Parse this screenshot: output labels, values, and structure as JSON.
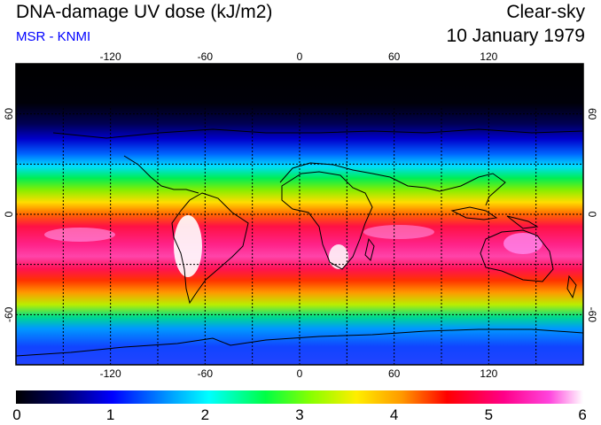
{
  "header": {
    "title": "DNA-damage UV dose (kJ/m2)",
    "source": "MSR - KNMI",
    "sky_condition": "Clear-sky",
    "date": "10 January 1979"
  },
  "map": {
    "lon_ticks": [
      "-120",
      "-60",
      "0",
      "60",
      "120"
    ],
    "lat_ticks": [
      "60",
      "0",
      "-60"
    ],
    "lon_range": [
      -180,
      180
    ],
    "lat_range": [
      -90,
      90
    ],
    "grid_lon_step": 30,
    "grid_lat_step": 30
  },
  "colorbar": {
    "labels": [
      "0",
      "1",
      "2",
      "3",
      "4",
      "5",
      "6"
    ],
    "min": 0,
    "max": 6,
    "colors": [
      "#000000",
      "#0000aa",
      "#0066ff",
      "#00e6ff",
      "#00dd55",
      "#66ee00",
      "#ffee00",
      "#ff9900",
      "#ff2200",
      "#ff0066",
      "#ff33cc",
      "#ffffff"
    ]
  }
}
